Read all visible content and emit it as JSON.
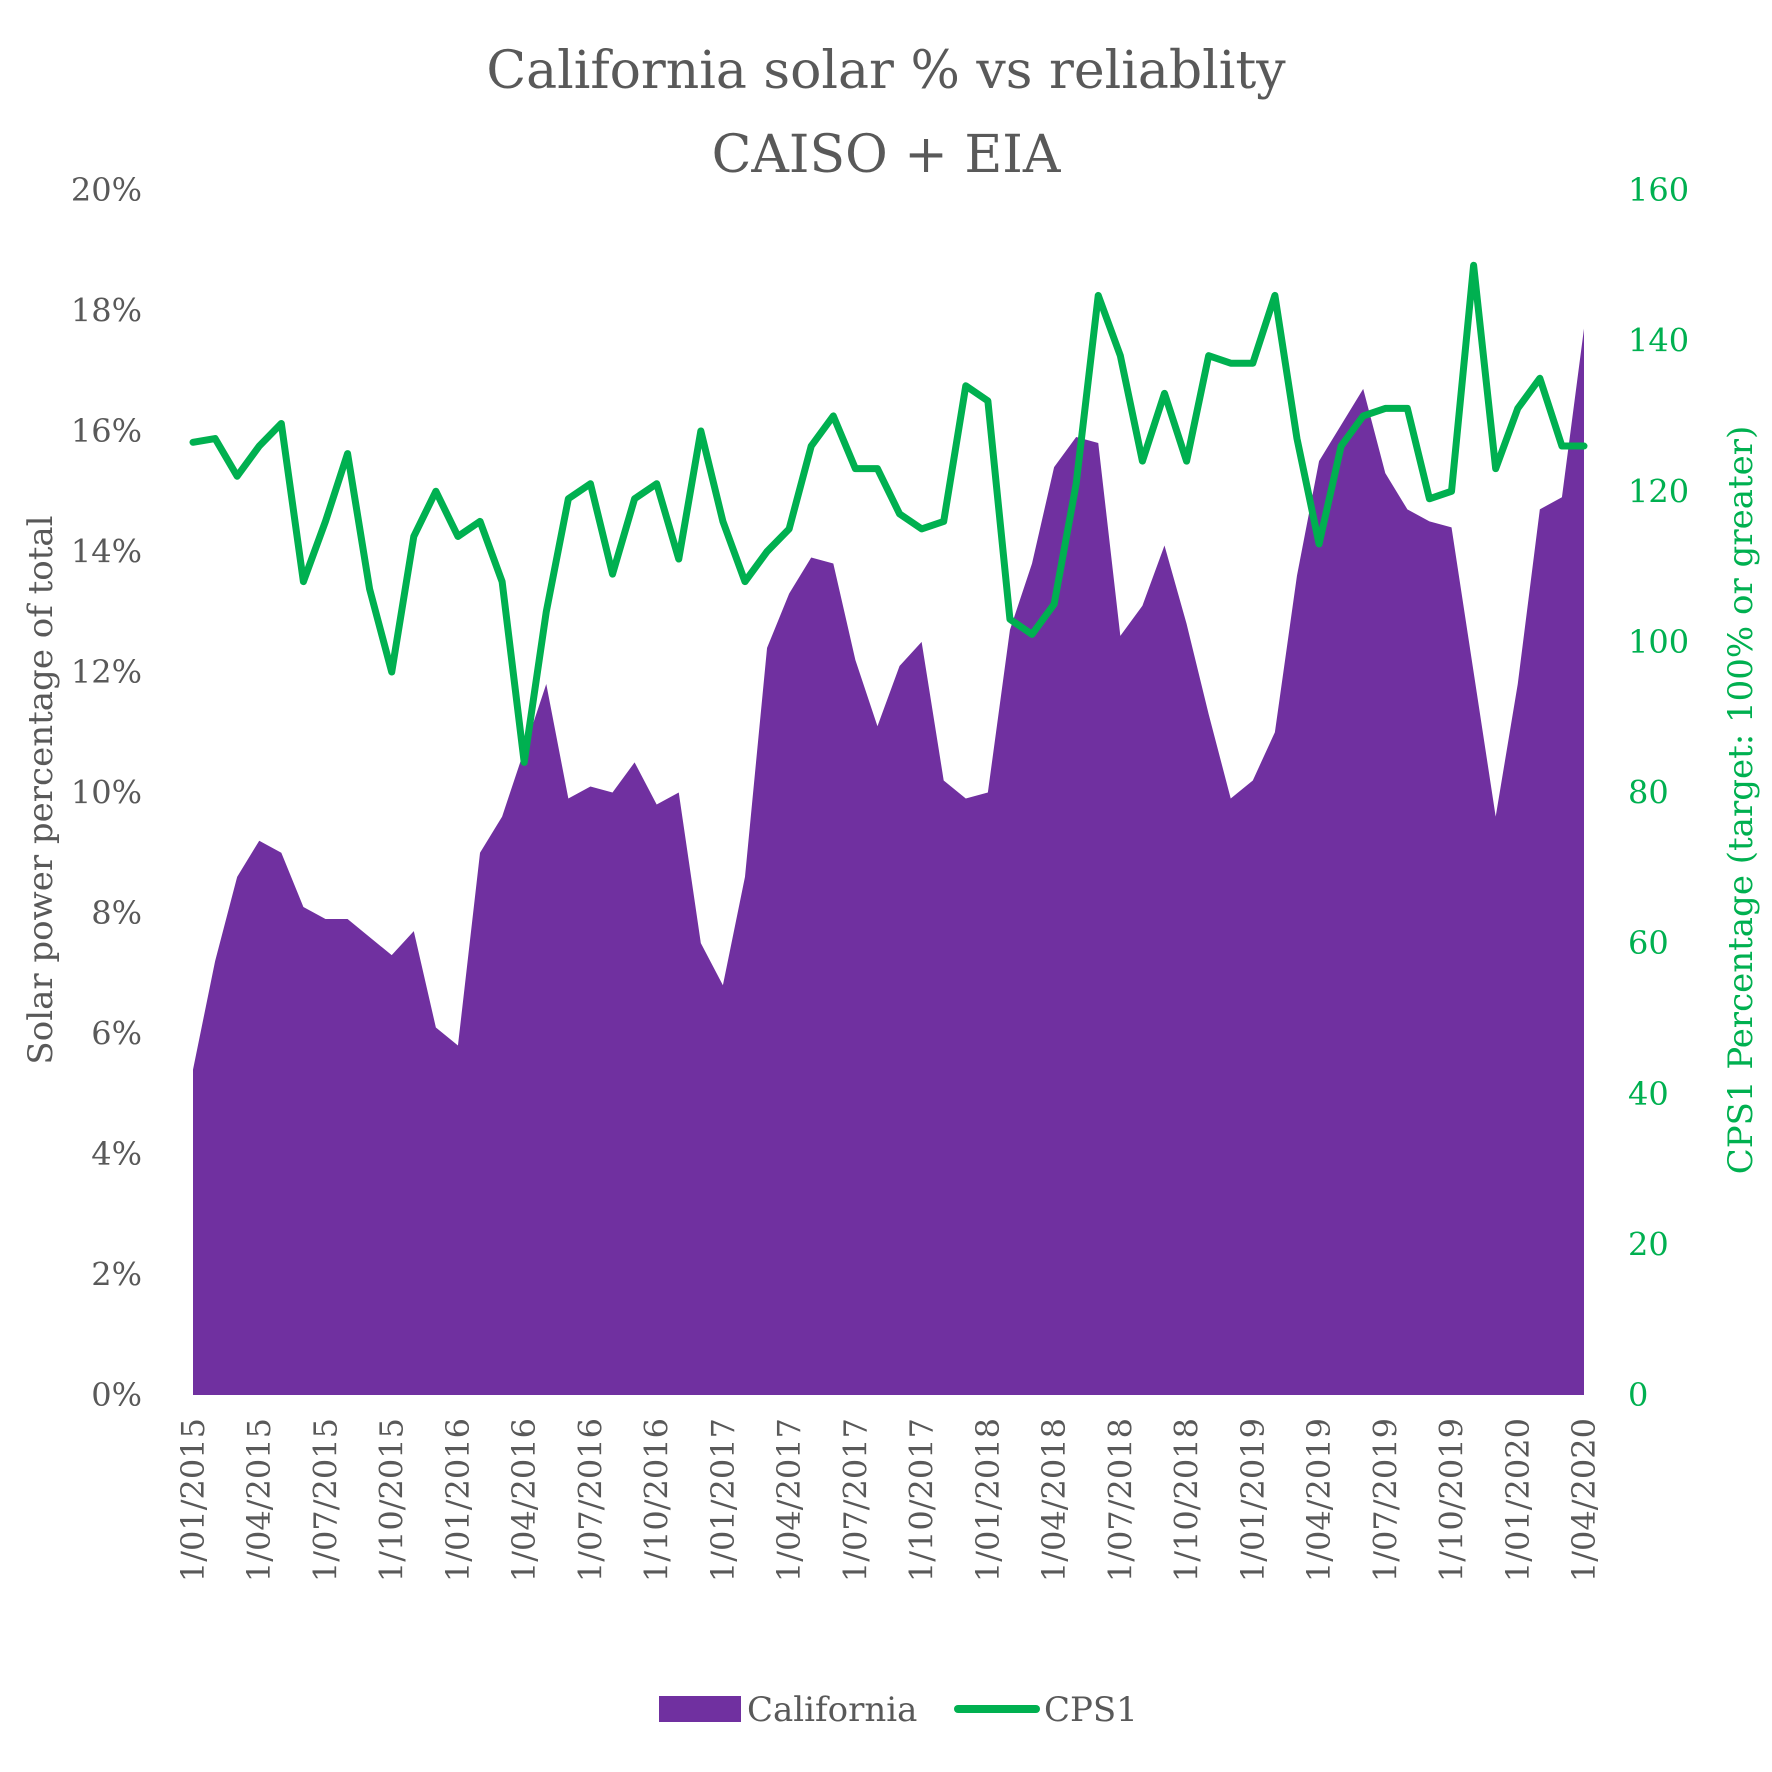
{
  "chart_data": {
    "type": "area+line",
    "title": [
      "California solar % vs reliablity",
      "CAISO + EIA"
    ],
    "y_left": {
      "label": "Solar power percentage of total",
      "min": 0,
      "max": 20,
      "step": 2,
      "ticks": [
        "0%",
        "2%",
        "4%",
        "6%",
        "8%",
        "10%",
        "12%",
        "14%",
        "16%",
        "18%",
        "20%"
      ]
    },
    "y_right": {
      "label": "CPS1 Percentage (target: 100% or greater)",
      "min": 0,
      "max": 160,
      "step": 20,
      "ticks": [
        "0",
        "20",
        "40",
        "60",
        "80",
        "100",
        "120",
        "140",
        "160"
      ]
    },
    "x_labels": [
      "1/01/2015",
      "1/04/2015",
      "1/07/2015",
      "1/10/2015",
      "1/01/2016",
      "1/04/2016",
      "1/07/2016",
      "1/10/2016",
      "1/01/2017",
      "1/04/2017",
      "1/07/2017",
      "1/10/2017",
      "1/01/2018",
      "1/04/2018",
      "1/07/2018",
      "1/10/2018",
      "1/01/2019",
      "1/04/2019",
      "1/07/2019",
      "1/10/2019",
      "1/01/2020",
      "1/04/2020"
    ],
    "series": [
      {
        "name": "California",
        "type": "area",
        "axis": "left",
        "color": "#7030A0",
        "values": [
          5.4,
          7.2,
          8.6,
          9.2,
          9.0,
          8.1,
          7.9,
          7.9,
          7.6,
          7.3,
          7.7,
          6.1,
          5.8,
          9.0,
          9.6,
          10.7,
          11.8,
          9.9,
          10.1,
          10.0,
          10.5,
          9.8,
          10.0,
          7.5,
          6.8,
          8.6,
          12.4,
          13.3,
          13.9,
          13.8,
          12.2,
          11.1,
          12.1,
          12.5,
          10.2,
          9.9,
          10.0,
          12.7,
          13.8,
          15.4,
          15.9,
          15.8,
          12.6,
          13.1,
          14.1,
          12.8,
          11.3,
          9.9,
          10.2,
          11.0,
          13.6,
          15.5,
          16.1,
          16.7,
          15.3,
          14.7,
          14.5,
          14.4,
          12.0,
          9.6,
          11.8,
          14.7,
          14.9,
          17.7
        ]
      },
      {
        "name": "CPS1",
        "type": "line",
        "axis": "right",
        "color": "#00B050",
        "values": [
          126.5,
          127,
          122,
          126,
          129,
          108,
          116,
          125,
          107,
          96,
          114,
          120,
          114,
          116,
          108,
          84,
          104,
          119,
          121,
          109,
          119,
          121,
          111,
          128,
          116,
          108,
          112,
          115,
          126,
          130,
          123,
          123,
          117,
          115,
          116,
          134,
          132,
          103,
          101,
          105,
          121,
          146,
          138,
          124,
          133,
          124,
          138,
          137,
          137,
          146,
          127,
          113,
          126,
          130,
          131,
          131,
          119,
          120,
          150,
          123,
          131,
          135,
          126,
          126
        ]
      }
    ],
    "legend": {
      "position": "bottom",
      "items": [
        "California",
        "CPS1"
      ]
    },
    "grid": false
  }
}
